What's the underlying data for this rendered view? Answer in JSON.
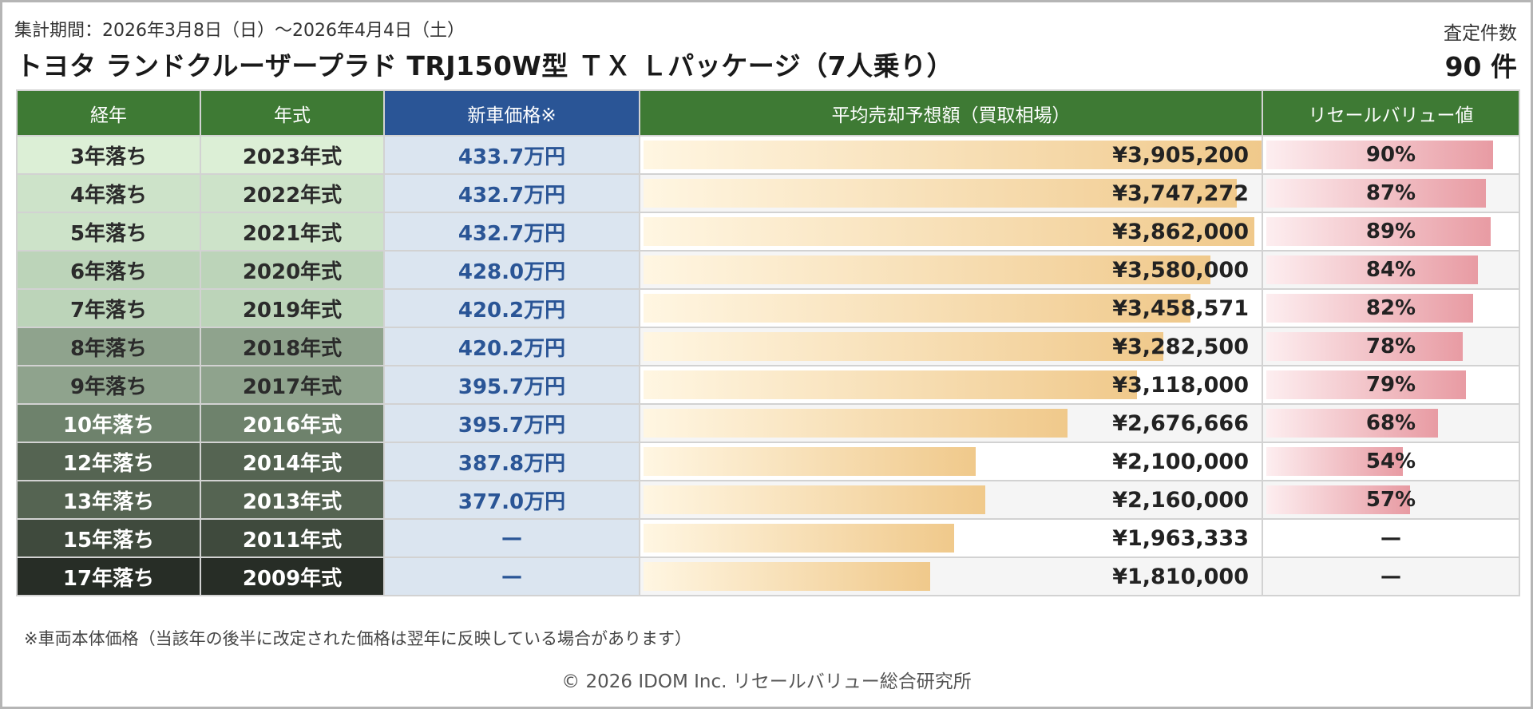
{
  "header": {
    "period": "集計期間：2026年3月8日（日）～2026年4月4日（土）",
    "title": "トヨタ ランドクルーザープラド TRJ150W型 ＴＸ Ｌパッケージ（7人乗り）",
    "count_label": "査定件数",
    "count_value": "90 件"
  },
  "columns": [
    "経年",
    "年式",
    "新車価格※",
    "平均売却予想額（買取相場）",
    "リセールバリュー値"
  ],
  "rows": [
    {
      "age": "3年落ち",
      "year": "2023年式",
      "new_price": "433.7万円",
      "avg_price": "¥3,905,200",
      "resale": "90%"
    },
    {
      "age": "4年落ち",
      "year": "2022年式",
      "new_price": "432.7万円",
      "avg_price": "¥3,747,272",
      "resale": "87%"
    },
    {
      "age": "5年落ち",
      "year": "2021年式",
      "new_price": "432.7万円",
      "avg_price": "¥3,862,000",
      "resale": "89%"
    },
    {
      "age": "6年落ち",
      "year": "2020年式",
      "new_price": "428.0万円",
      "avg_price": "¥3,580,000",
      "resale": "84%"
    },
    {
      "age": "7年落ち",
      "year": "2019年式",
      "new_price": "420.2万円",
      "avg_price": "¥3,458,571",
      "resale": "82%"
    },
    {
      "age": "8年落ち",
      "year": "2018年式",
      "new_price": "420.2万円",
      "avg_price": "¥3,282,500",
      "resale": "78%"
    },
    {
      "age": "9年落ち",
      "year": "2017年式",
      "new_price": "395.7万円",
      "avg_price": "¥3,118,000",
      "resale": "79%"
    },
    {
      "age": "10年落ち",
      "year": "2016年式",
      "new_price": "395.7万円",
      "avg_price": "¥2,676,666",
      "resale": "68%"
    },
    {
      "age": "12年落ち",
      "year": "2014年式",
      "new_price": "387.8万円",
      "avg_price": "¥2,100,000",
      "resale": "54%"
    },
    {
      "age": "13年落ち",
      "year": "2013年式",
      "new_price": "377.0万円",
      "avg_price": "¥2,160,000",
      "resale": "57%"
    },
    {
      "age": "15年落ち",
      "year": "2011年式",
      "new_price": "—",
      "avg_price": "¥1,963,333",
      "resale": "—"
    },
    {
      "age": "17年落ち",
      "year": "2009年式",
      "new_price": "—",
      "avg_price": "¥1,810,000",
      "resale": "—"
    }
  ],
  "footer": {
    "note": "※車両本体価格（当該年の後半に改定された価格は翌年に反映している場合があります）",
    "copyright": "© 2026 IDOM Inc. リセールバリュー総合研究所"
  },
  "colors": {
    "header_green": "#3e7a34",
    "header_blue": "#2a5596",
    "new_price_text": "#2a5596",
    "age_row_shades": [
      "#dcefd6",
      "#cde3c9",
      "#cde3c9",
      "#bcd4b9",
      "#bcd4b9",
      "#8fa38d",
      "#8fa38d",
      "#6e826c",
      "#556452",
      "#556452",
      "#3f4a3d",
      "#272d26"
    ]
  },
  "chart_data": {
    "type": "table",
    "columns": [
      "経年",
      "年式",
      "新車価格※",
      "平均売却予想額（買取相場）",
      "リセールバリュー値"
    ],
    "categories": [
      "3年落ち",
      "4年落ち",
      "5年落ち",
      "6年落ち",
      "7年落ち",
      "8年落ち",
      "9年落ち",
      "10年落ち",
      "12年落ち",
      "13年落ち",
      "15年落ち",
      "17年落ち"
    ],
    "series": [
      {
        "name": "平均売却予想額（買取相場）",
        "values": [
          3905200,
          3747272,
          3862000,
          3580000,
          3458571,
          3282500,
          3118000,
          2676666,
          2100000,
          2160000,
          1963333,
          1810000
        ]
      },
      {
        "name": "リセールバリュー値",
        "values": [
          90,
          87,
          89,
          84,
          82,
          78,
          79,
          68,
          54,
          57,
          null,
          null
        ]
      }
    ]
  }
}
